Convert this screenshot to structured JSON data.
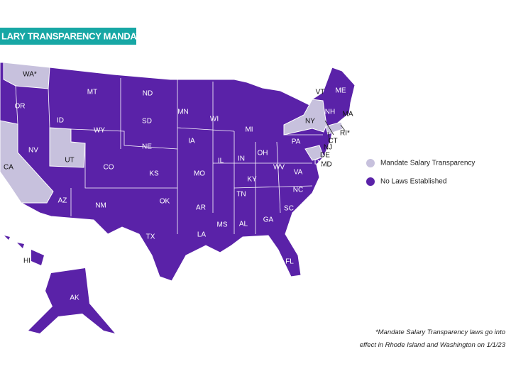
{
  "header": {
    "title": "LARY TRANSPARENCY MANDATE MAP"
  },
  "legend": [
    {
      "label": "Mandate Salary Transparency",
      "color": "#c7c1dd",
      "states": [
        "WA*",
        "CA",
        "UT",
        "NY",
        "CT",
        "RI*",
        "MD"
      ]
    },
    {
      "label": "No Laws Established",
      "color": "#5a22a8",
      "states": [
        "OR",
        "ID",
        "MT",
        "ND",
        "SD",
        "WY",
        "NE",
        "NV",
        "CO",
        "KS",
        "AZ",
        "NM",
        "OK",
        "TX",
        "MN",
        "IA",
        "MO",
        "AR",
        "LA",
        "WI",
        "IL",
        "MS",
        "AL",
        "MI",
        "IN",
        "KY",
        "TN",
        "GA",
        "OH",
        "WV",
        "VA",
        "NC",
        "SC",
        "FL",
        "PA",
        "VT",
        "ME",
        "NH",
        "MA",
        "NJ",
        "DE",
        "DC",
        "HI",
        "AK"
      ]
    }
  ],
  "footnote": [
    "*Mandate Salary Transparency laws go into",
    "effect in Rhode Island and Washington on 1/1/23"
  ]
}
